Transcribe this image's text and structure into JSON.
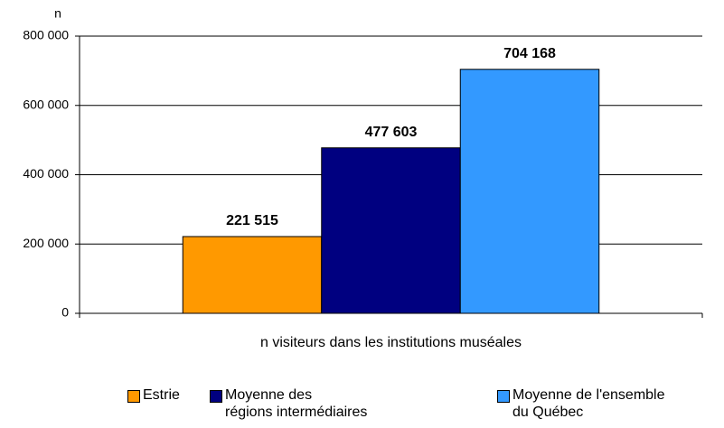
{
  "chart_data": {
    "type": "bar",
    "y_axis_label": "n",
    "categories": [
      "n visiteurs dans les institutions muséales"
    ],
    "series": [
      {
        "name": "Estrie",
        "color": "#ff9900",
        "values": [
          221515
        ],
        "value_labels": [
          "221 515"
        ]
      },
      {
        "name": "Moyenne des\nrégions intermédiaires",
        "color": "#000080",
        "values": [
          477603
        ],
        "value_labels": [
          "477 603"
        ]
      },
      {
        "name": "Moyenne de l'ensemble\ndu Québec",
        "color": "#3399ff",
        "values": [
          704168
        ],
        "value_labels": [
          "704 168"
        ]
      }
    ],
    "ylim": [
      0,
      800000
    ],
    "yticks": [
      0,
      {
        "value": 200000,
        "label": "200 000"
      },
      {
        "value": 400000,
        "label": "400 000"
      },
      {
        "value": 600000,
        "label": "600 000"
      },
      {
        "value": 800000,
        "label": "800 000"
      }
    ],
    "grid": true,
    "legend": "bottom"
  }
}
